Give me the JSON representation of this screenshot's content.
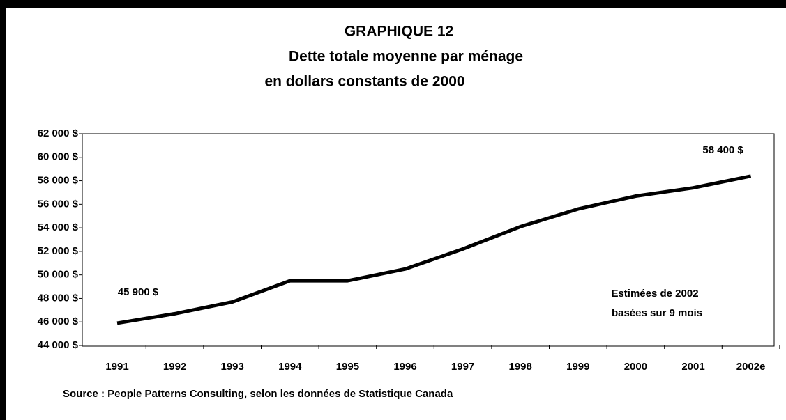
{
  "chart_data": {
    "type": "line",
    "title": [
      "GRAPHIQUE 12",
      "Dette totale moyenne par ménage",
      "en dollars constants de 2000"
    ],
    "categories": [
      "1991",
      "1992",
      "1993",
      "1994",
      "1995",
      "1996",
      "1997",
      "1998",
      "1999",
      "2000",
      "2001",
      "2002e"
    ],
    "series": [
      {
        "name": "Dette totale moyenne par ménage",
        "color": "#000000",
        "values": [
          45900,
          46700,
          47700,
          49500,
          49500,
          50500,
          52200,
          54100,
          55600,
          56700,
          57400,
          58400
        ],
        "value_labels": [
          "45 900 $",
          null,
          null,
          null,
          null,
          null,
          null,
          null,
          null,
          null,
          null,
          "58 400 $"
        ]
      }
    ],
    "ylim": [
      44000,
      62000
    ],
    "yticks": [
      {
        "value": 44000,
        "label": "44 000 $"
      },
      {
        "value": 46000,
        "label": "46 000 $"
      },
      {
        "value": 48000,
        "label": "48 000 $"
      },
      {
        "value": 50000,
        "label": "50 000 $"
      },
      {
        "value": 52000,
        "label": "52 000 $"
      },
      {
        "value": 54000,
        "label": "54 000 $"
      },
      {
        "value": 56000,
        "label": "56 000 $"
      },
      {
        "value": 58000,
        "label": "58 000 $"
      },
      {
        "value": 60000,
        "label": "60 000 $"
      },
      {
        "value": 62000,
        "label": "62 000 $"
      }
    ],
    "annotations": [
      "Estimées de 2002",
      "basées sur 9 mois"
    ],
    "source": "Source : People Patterns Consulting, selon les données de Statistique Canada",
    "grid": false
  }
}
